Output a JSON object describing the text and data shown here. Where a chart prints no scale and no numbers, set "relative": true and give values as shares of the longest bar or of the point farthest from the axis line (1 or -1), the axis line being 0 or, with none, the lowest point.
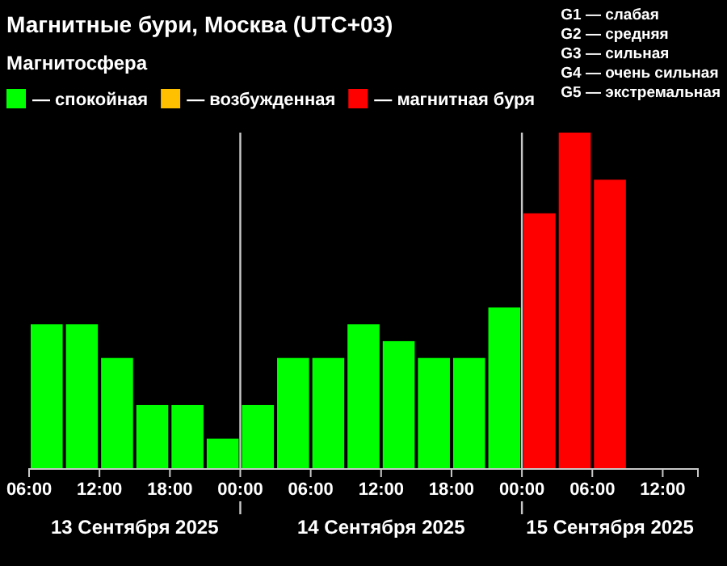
{
  "chart_data": {
    "type": "bar",
    "title": "Магнитные бури, Москва (UTC+03)",
    "legend_title": "Магнитосфера",
    "legend": "top",
    "relative": true,
    "x": [
      "2025-09-13T07:30",
      "2025-09-13T10:30",
      "2025-09-13T13:30",
      "2025-09-13T16:30",
      "2025-09-13T19:30",
      "2025-09-13T22:30",
      "2025-09-14T01:30",
      "2025-09-14T04:30",
      "2025-09-14T07:30",
      "2025-09-14T10:30",
      "2025-09-14T13:30",
      "2025-09-14T16:30",
      "2025-09-14T19:30",
      "2025-09-14T22:30",
      "2025-09-15T01:30",
      "2025-09-15T04:30",
      "2025-09-15T07:30"
    ],
    "xlim": [
      "2025-09-13T06:00",
      "2025-09-15T15:00"
    ],
    "xticks": [
      {
        "value": "2025-09-13T06:00",
        "label": "06:00"
      },
      {
        "value": "2025-09-13T12:00",
        "label": "12:00"
      },
      {
        "value": "2025-09-13T18:00",
        "label": "18:00"
      },
      {
        "value": "2025-09-14T00:00",
        "label": "00:00"
      },
      {
        "value": "2025-09-14T06:00",
        "label": "06:00"
      },
      {
        "value": "2025-09-14T12:00",
        "label": "12:00"
      },
      {
        "value": "2025-09-14T18:00",
        "label": "18:00"
      },
      {
        "value": "2025-09-15T00:00",
        "label": "00:00"
      },
      {
        "value": "2025-09-15T06:00",
        "label": "06:00"
      },
      {
        "value": "2025-09-15T12:00",
        "label": "12:00"
      }
    ],
    "series": [
      {
        "name": "— спокойная",
        "color": "#00ff00",
        "values": [
          0.43,
          0.43,
          0.33,
          0.19,
          0.19,
          0.09,
          0.19,
          0.33,
          0.33,
          0.43,
          0.38,
          0.33,
          0.33,
          0.48,
          null,
          null,
          null
        ]
      },
      {
        "name": "— возбужденная",
        "color": "#ffc000",
        "values": [
          null,
          null,
          null,
          null,
          null,
          null,
          null,
          null,
          null,
          null,
          null,
          null,
          null,
          null,
          null,
          null,
          null
        ]
      },
      {
        "name": "— магнитная буря",
        "color": "#ff0000",
        "values": [
          null,
          null,
          null,
          null,
          null,
          null,
          null,
          null,
          null,
          null,
          null,
          null,
          null,
          null,
          0.76,
          1,
          0.86
        ]
      }
    ],
    "ref_lines": [
      {
        "axis": "x",
        "value": "2025-09-14T00:00",
        "color": "#c8c8c8"
      },
      {
        "axis": "x",
        "value": "2025-09-15T00:00",
        "color": "#c8c8c8"
      }
    ],
    "annotations": [
      "13 Сентября 2025",
      "14 Сентября 2025",
      "15 Сентября 2025",
      "G1 — слабая",
      "G2 — средняя",
      "G3 — сильная",
      "G4 — очень сильная",
      "G5 — экстремальная"
    ]
  }
}
